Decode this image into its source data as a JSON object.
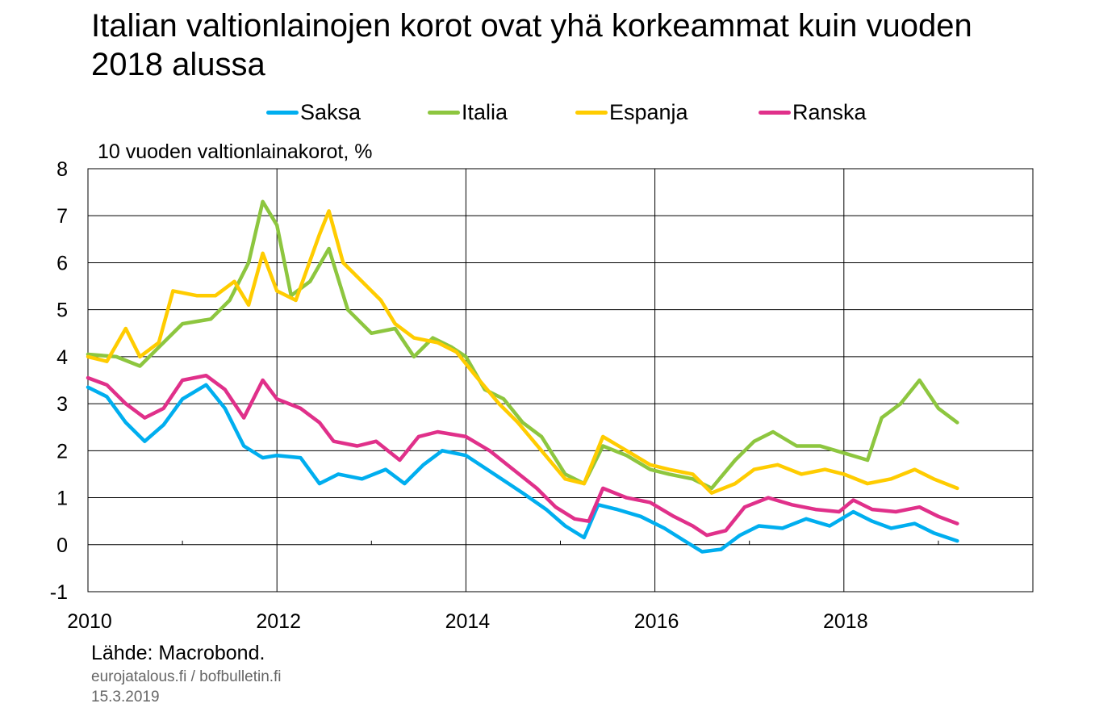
{
  "chart_data": {
    "type": "line",
    "title": "Italian valtionlainojen korot ovat yhä korkeammat kuin vuoden 2018 alussa",
    "ylabel": "10 vuoden valtionlainakorot, %",
    "xlabel": "",
    "xlim": [
      2010.0,
      2020.0
    ],
    "ylim": [
      -1,
      8
    ],
    "yticks": [
      "8",
      "7",
      "6",
      "5",
      "4",
      "3",
      "2",
      "1",
      "0",
      "-1"
    ],
    "xticks": [
      "2010",
      "2012",
      "2014",
      "2016",
      "2018"
    ],
    "grid": true,
    "legend_position": "top",
    "series": [
      {
        "name": "Saksa",
        "color": "#00aeef",
        "points": [
          [
            2010.0,
            3.35
          ],
          [
            2010.2,
            3.15
          ],
          [
            2010.4,
            2.6
          ],
          [
            2010.6,
            2.2
          ],
          [
            2010.8,
            2.55
          ],
          [
            2011.0,
            3.1
          ],
          [
            2011.25,
            3.4
          ],
          [
            2011.45,
            2.9
          ],
          [
            2011.65,
            2.1
          ],
          [
            2011.85,
            1.85
          ],
          [
            2012.0,
            1.9
          ],
          [
            2012.25,
            1.85
          ],
          [
            2012.45,
            1.3
          ],
          [
            2012.65,
            1.5
          ],
          [
            2012.9,
            1.4
          ],
          [
            2013.15,
            1.6
          ],
          [
            2013.35,
            1.3
          ],
          [
            2013.55,
            1.7
          ],
          [
            2013.75,
            2.0
          ],
          [
            2014.0,
            1.9
          ],
          [
            2014.3,
            1.5
          ],
          [
            2014.6,
            1.1
          ],
          [
            2014.85,
            0.75
          ],
          [
            2015.05,
            0.4
          ],
          [
            2015.25,
            0.15
          ],
          [
            2015.4,
            0.85
          ],
          [
            2015.6,
            0.75
          ],
          [
            2015.85,
            0.6
          ],
          [
            2016.1,
            0.35
          ],
          [
            2016.3,
            0.1
          ],
          [
            2016.5,
            -0.15
          ],
          [
            2016.7,
            -0.1
          ],
          [
            2016.9,
            0.2
          ],
          [
            2017.1,
            0.4
          ],
          [
            2017.35,
            0.35
          ],
          [
            2017.6,
            0.55
          ],
          [
            2017.85,
            0.4
          ],
          [
            2018.1,
            0.7
          ],
          [
            2018.3,
            0.5
          ],
          [
            2018.5,
            0.35
          ],
          [
            2018.75,
            0.45
          ],
          [
            2018.95,
            0.25
          ],
          [
            2019.2,
            0.08
          ]
        ]
      },
      {
        "name": "Italia",
        "color": "#8dc63f",
        "points": [
          [
            2010.0,
            4.05
          ],
          [
            2010.3,
            4.0
          ],
          [
            2010.55,
            3.8
          ],
          [
            2010.75,
            4.2
          ],
          [
            2011.0,
            4.7
          ],
          [
            2011.3,
            4.8
          ],
          [
            2011.5,
            5.2
          ],
          [
            2011.7,
            6.0
          ],
          [
            2011.85,
            7.3
          ],
          [
            2012.0,
            6.8
          ],
          [
            2012.15,
            5.3
          ],
          [
            2012.35,
            5.6
          ],
          [
            2012.55,
            6.3
          ],
          [
            2012.75,
            5.0
          ],
          [
            2013.0,
            4.5
          ],
          [
            2013.25,
            4.6
          ],
          [
            2013.45,
            4.0
          ],
          [
            2013.65,
            4.4
          ],
          [
            2013.85,
            4.2
          ],
          [
            2014.0,
            4.0
          ],
          [
            2014.2,
            3.3
          ],
          [
            2014.4,
            3.1
          ],
          [
            2014.6,
            2.6
          ],
          [
            2014.8,
            2.3
          ],
          [
            2015.05,
            1.5
          ],
          [
            2015.25,
            1.3
          ],
          [
            2015.45,
            2.1
          ],
          [
            2015.7,
            1.9
          ],
          [
            2015.95,
            1.6
          ],
          [
            2016.15,
            1.5
          ],
          [
            2016.4,
            1.4
          ],
          [
            2016.6,
            1.2
          ],
          [
            2016.85,
            1.8
          ],
          [
            2017.05,
            2.2
          ],
          [
            2017.25,
            2.4
          ],
          [
            2017.5,
            2.1
          ],
          [
            2017.75,
            2.1
          ],
          [
            2018.0,
            1.95
          ],
          [
            2018.25,
            1.8
          ],
          [
            2018.4,
            2.7
          ],
          [
            2018.6,
            3.0
          ],
          [
            2018.8,
            3.5
          ],
          [
            2019.0,
            2.9
          ],
          [
            2019.2,
            2.6
          ]
        ]
      },
      {
        "name": "Espanja",
        "color": "#ffcc00",
        "points": [
          [
            2010.0,
            4.0
          ],
          [
            2010.2,
            3.9
          ],
          [
            2010.4,
            4.6
          ],
          [
            2010.55,
            4.0
          ],
          [
            2010.75,
            4.3
          ],
          [
            2010.9,
            5.4
          ],
          [
            2011.15,
            5.3
          ],
          [
            2011.35,
            5.3
          ],
          [
            2011.55,
            5.6
          ],
          [
            2011.7,
            5.1
          ],
          [
            2011.85,
            6.2
          ],
          [
            2012.0,
            5.4
          ],
          [
            2012.2,
            5.2
          ],
          [
            2012.45,
            6.6
          ],
          [
            2012.55,
            7.1
          ],
          [
            2012.7,
            6.0
          ],
          [
            2012.9,
            5.6
          ],
          [
            2013.1,
            5.2
          ],
          [
            2013.25,
            4.7
          ],
          [
            2013.45,
            4.4
          ],
          [
            2013.7,
            4.3
          ],
          [
            2013.9,
            4.1
          ],
          [
            2014.1,
            3.6
          ],
          [
            2014.35,
            3.0
          ],
          [
            2014.55,
            2.6
          ],
          [
            2014.8,
            2.0
          ],
          [
            2015.05,
            1.4
          ],
          [
            2015.25,
            1.3
          ],
          [
            2015.45,
            2.3
          ],
          [
            2015.7,
            2.0
          ],
          [
            2015.95,
            1.7
          ],
          [
            2016.15,
            1.6
          ],
          [
            2016.4,
            1.5
          ],
          [
            2016.6,
            1.1
          ],
          [
            2016.85,
            1.3
          ],
          [
            2017.05,
            1.6
          ],
          [
            2017.3,
            1.7
          ],
          [
            2017.55,
            1.5
          ],
          [
            2017.8,
            1.6
          ],
          [
            2018.0,
            1.5
          ],
          [
            2018.25,
            1.3
          ],
          [
            2018.5,
            1.4
          ],
          [
            2018.75,
            1.6
          ],
          [
            2018.95,
            1.4
          ],
          [
            2019.2,
            1.2
          ]
        ]
      },
      {
        "name": "Ranska",
        "color": "#e0308a",
        "points": [
          [
            2010.0,
            3.55
          ],
          [
            2010.2,
            3.4
          ],
          [
            2010.4,
            3.0
          ],
          [
            2010.6,
            2.7
          ],
          [
            2010.8,
            2.9
          ],
          [
            2011.0,
            3.5
          ],
          [
            2011.25,
            3.6
          ],
          [
            2011.45,
            3.3
          ],
          [
            2011.65,
            2.7
          ],
          [
            2011.85,
            3.5
          ],
          [
            2012.0,
            3.1
          ],
          [
            2012.25,
            2.9
          ],
          [
            2012.45,
            2.6
          ],
          [
            2012.6,
            2.2
          ],
          [
            2012.85,
            2.1
          ],
          [
            2013.05,
            2.2
          ],
          [
            2013.3,
            1.8
          ],
          [
            2013.5,
            2.3
          ],
          [
            2013.7,
            2.4
          ],
          [
            2014.0,
            2.3
          ],
          [
            2014.25,
            2.0
          ],
          [
            2014.5,
            1.6
          ],
          [
            2014.75,
            1.2
          ],
          [
            2014.95,
            0.8
          ],
          [
            2015.15,
            0.55
          ],
          [
            2015.3,
            0.5
          ],
          [
            2015.45,
            1.2
          ],
          [
            2015.7,
            1.0
          ],
          [
            2015.95,
            0.9
          ],
          [
            2016.2,
            0.6
          ],
          [
            2016.4,
            0.4
          ],
          [
            2016.55,
            0.2
          ],
          [
            2016.75,
            0.3
          ],
          [
            2016.95,
            0.8
          ],
          [
            2017.2,
            1.0
          ],
          [
            2017.45,
            0.85
          ],
          [
            2017.7,
            0.75
          ],
          [
            2017.95,
            0.7
          ],
          [
            2018.1,
            0.95
          ],
          [
            2018.3,
            0.75
          ],
          [
            2018.55,
            0.7
          ],
          [
            2018.8,
            0.8
          ],
          [
            2019.0,
            0.6
          ],
          [
            2019.2,
            0.45
          ]
        ]
      }
    ]
  },
  "source": "Lähde: Macrobond.",
  "site": "eurojatalous.fi  /  bofbulletin.fi",
  "date": "15.3.2019"
}
